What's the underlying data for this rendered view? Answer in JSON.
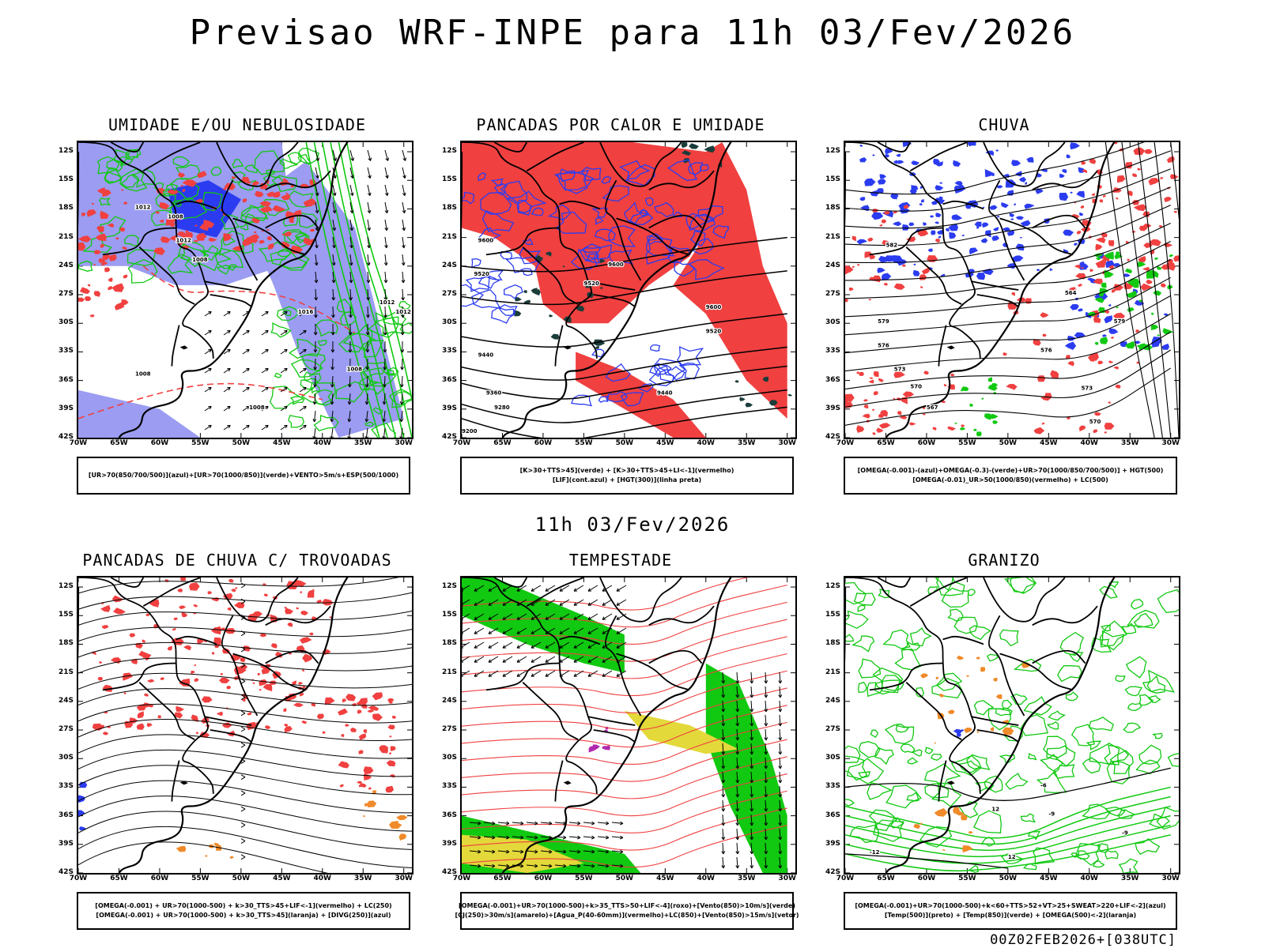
{
  "main_title": "Previsao WRF-INPE  para 11h 03/Fev/2026",
  "mid_title": "11h 03/Fev/2026",
  "footer": "00Z02FEB2026+[038UTC]",
  "lat_labels": [
    "12S",
    "15S",
    "18S",
    "21S",
    "24S",
    "27S",
    "30S",
    "33S",
    "36S",
    "39S",
    "42S"
  ],
  "lon_labels": [
    "70W",
    "65W",
    "60W",
    "55W",
    "50W",
    "45W",
    "40W",
    "35W",
    "30W"
  ],
  "colors": {
    "blue": "#2b3cf0",
    "lavender": "#9b9cf2",
    "green": "#11c911",
    "red": "#f04040",
    "darkteal": "#1a3d3a",
    "yellow": "#e3d93a",
    "orange": "#f08a2a"
  },
  "panels": [
    {
      "title": "UMIDADE E/OU NEBULOSIDADE",
      "legend": [
        "[UR>70(850/700/500)](azul)+[UR>70(1000/850)](verde)+VENTO>5m/s+ESP(500/1000)"
      ],
      "contour_labels": [
        "1012",
        "1008",
        "1012",
        "1008",
        "1016",
        "1012",
        "1012",
        "1008",
        "1008",
        "1008"
      ]
    },
    {
      "title": "PANCADAS POR CALOR E UMIDADE",
      "legend": [
        "[K>30+TTS>45](verde) + [K>30+TTS>45+LI<-1](vermelho)",
        "[LIF](cont.azul) + [HGT(300)](linha preta)"
      ],
      "contour_labels": [
        "9600",
        "9520",
        "9600",
        "9520",
        "9600",
        "9520",
        "9440",
        "9440",
        "9360",
        "9280",
        "9200"
      ]
    },
    {
      "title": "CHUVA",
      "legend": [
        "[OMEGA(-0.001)-(azul)+OMEGA(-0.3)-(verde)+UR>70(1000/850/700/500)] + HGT(500)",
        "[OMEGA(-0.01)_UR>50(1000/850)(vermelho) + LC(500)"
      ],
      "contour_labels": [
        "582",
        "579",
        "576",
        "573",
        "570",
        "567",
        "564",
        "579",
        "576",
        "573",
        "570"
      ]
    },
    {
      "title": "PANCADAS DE CHUVA C/ TROVOADAS",
      "legend": [
        "[OMEGA(-0.001) + UR>70(1000-500) + k>30_TTS>45+LIF<-1](vermelho) + LC(250)",
        "[OMEGA(-0.001) + UR>70(1000-500) + k>30_TTS>45](laranja) + [DIVG(250)](azul)"
      ],
      "contour_labels": []
    },
    {
      "title": "TEMPESTADE",
      "legend": [
        "[OMEGA(-0.001)+UR>70(1000-500)+k>35_TTS>50+LIF<-4](roxo)+[Vento(850)>10m/s](verde)",
        "[CJ(250)>30m/s](amarelo)+[Agua_P(40-60mm)](vermelho)+LC(850)+[Vento(850)>15m/s](vetor)"
      ],
      "contour_labels": []
    },
    {
      "title": "GRANIZO",
      "legend": [
        "[OMEGA(-0.001)+UR>70(1000-500)+k<60+TTS>52+VT>25+SWEAT>220+LIF<-2](azul)",
        "[Temp(500)](preto) + [Temp(850)](verde) + [OMEGA(500)<-2](laranja)"
      ],
      "contour_labels": [
        "-12",
        "-9",
        "-6",
        "12",
        "12",
        "-9"
      ]
    }
  ]
}
